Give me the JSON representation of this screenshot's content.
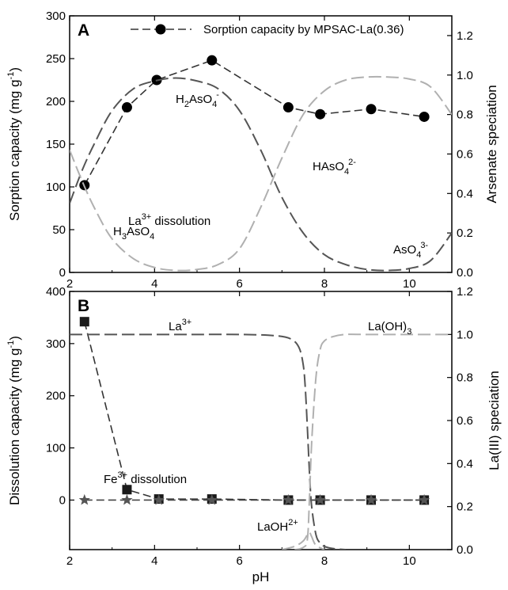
{
  "chart_data": [
    {
      "panel": "A",
      "type": "line",
      "xlabel": "",
      "xlim": [
        2,
        11
      ],
      "x_ticks": [
        2,
        4,
        6,
        8,
        10
      ],
      "ylabel": "Sorption capacity (mg g-1)",
      "ylabel_parts": [
        "Sorption capacity (mg g",
        "-1",
        ")"
      ],
      "ylim": [
        0,
        300
      ],
      "y_ticks": [
        0,
        50,
        100,
        150,
        200,
        250,
        300
      ],
      "y2label": "Arsenate speciation",
      "y2lim": [
        0,
        1.3
      ],
      "y2_ticks": [
        "0.0",
        "0.2",
        "0.4",
        "0.6",
        "0.8",
        "1.0",
        "1.2"
      ],
      "legend": {
        "label": "Sorption capacity by MPSAC-La(0.36)",
        "position": "top"
      },
      "series": [
        {
          "name": "Sorption capacity by MPSAC-La(0.36)",
          "axis": "left",
          "marker": "circle",
          "x": [
            2.35,
            3.35,
            4.05,
            5.35,
            7.15,
            7.9,
            9.1,
            10.35
          ],
          "y": [
            102,
            193,
            225,
            248,
            193,
            185,
            191,
            182
          ]
        },
        {
          "axis": "right",
          "color": "#555555",
          "x": [
            2.0,
            2.3,
            2.6,
            3.0,
            3.5,
            4.0,
            4.5,
            5.0,
            5.5,
            6.0,
            6.5,
            7.0,
            7.5,
            8.0,
            8.5,
            9.0,
            9.5,
            10.0,
            10.5,
            11.0
          ],
          "y": [
            0.35,
            0.52,
            0.66,
            0.82,
            0.93,
            0.97,
            0.985,
            0.97,
            0.93,
            0.82,
            0.62,
            0.38,
            0.2,
            0.09,
            0.04,
            0.015,
            0.01,
            0.02,
            0.06,
            0.2
          ]
        },
        {
          "axis": "right",
          "color": "#b0b0b0",
          "x": [
            2.0,
            2.3,
            2.6,
            3.0,
            3.5,
            4.0,
            4.5,
            5.0,
            5.5,
            6.0,
            6.5,
            7.0,
            7.5,
            8.0,
            8.5,
            9.0,
            9.5,
            10.0,
            10.5,
            11.0
          ],
          "y": [
            0.62,
            0.46,
            0.32,
            0.17,
            0.07,
            0.025,
            0.01,
            0.015,
            0.04,
            0.12,
            0.33,
            0.58,
            0.8,
            0.92,
            0.975,
            0.99,
            0.99,
            0.98,
            0.94,
            0.8
          ]
        }
      ],
      "annotations": [
        {
          "parts": [
            "H",
            "3",
            "AsO",
            "4",
            ""
          ]
        },
        {
          "parts": [
            "H",
            "2",
            "AsO",
            "4",
            "-"
          ]
        },
        {
          "parts": [
            "",
            "",
            "HAsO",
            "4",
            "2-"
          ]
        },
        {
          "parts": [
            "",
            "",
            "AsO",
            "4",
            "3-"
          ]
        }
      ]
    },
    {
      "panel": "B",
      "type": "line",
      "xlabel": "pH",
      "xlim": [
        2,
        11
      ],
      "x_ticks": [
        2,
        4,
        6,
        8,
        10
      ],
      "ylabel": "Dissolution capacity (mg g-1)",
      "ylabel_parts": [
        "Dissolution capacity (mg g",
        "-1",
        ")"
      ],
      "ylim": [
        -95,
        400
      ],
      "y_ticks": [
        0,
        100,
        200,
        300,
        400
      ],
      "y2label": "La(III) speciation",
      "y2_title_parts": [
        "La(III) speciation"
      ],
      "y2lim": [
        0,
        1.2
      ],
      "y2_ticks": [
        "0.0",
        "0.2",
        "0.4",
        "0.6",
        "0.8",
        "1.0",
        "1.2"
      ],
      "series": [
        {
          "name": "La3+ dissolution",
          "axis": "left",
          "marker": "square",
          "x": [
            2.35,
            3.35,
            4.1,
            5.35,
            7.15,
            7.9,
            9.1,
            10.35
          ],
          "y": [
            342,
            20,
            2,
            2,
            0,
            0,
            0,
            0
          ]
        },
        {
          "name": "Fe3+ dissolution",
          "axis": "left",
          "marker": "star",
          "x": [
            2.35,
            3.35,
            4.1,
            5.35,
            7.15,
            7.9,
            9.1,
            10.35
          ],
          "y": [
            0,
            0,
            0,
            0,
            0,
            0,
            0,
            0
          ]
        },
        {
          "axis": "right",
          "color": "#555555",
          "x": [
            2.0,
            3.0,
            4.0,
            5.0,
            6.0,
            6.8,
            7.2,
            7.4,
            7.5,
            7.55,
            7.6,
            7.65,
            7.7,
            7.8,
            7.9,
            8.0,
            8.2,
            8.5
          ],
          "y": [
            1.0,
            1.0,
            1.0,
            1.0,
            1.0,
            0.995,
            0.98,
            0.94,
            0.86,
            0.75,
            0.56,
            0.35,
            0.2,
            0.07,
            0.03,
            0.015,
            0.005,
            0.0
          ]
        },
        {
          "axis": "right",
          "color": "#b0b0b0",
          "x": [
            7.3,
            7.5,
            7.6,
            7.65,
            7.7,
            7.8,
            7.9,
            8.0,
            8.2,
            8.5,
            9.0,
            10.0,
            11.0
          ],
          "y": [
            0.0,
            0.01,
            0.05,
            0.25,
            0.5,
            0.8,
            0.93,
            0.97,
            0.99,
            1.0,
            1.0,
            1.0,
            1.0
          ]
        },
        {
          "axis": "right",
          "color": "#b0b0b0",
          "x": [
            7.0,
            7.3,
            7.5,
            7.6,
            7.65,
            7.7,
            7.8,
            8.0
          ],
          "y": [
            0.0,
            0.015,
            0.04,
            0.07,
            0.08,
            0.06,
            0.02,
            0.0
          ]
        }
      ],
      "annotations": [
        {
          "parts": [
            "La",
            "",
            "",
            "3+"
          ]
        },
        {
          "parts": [
            "La(OH)",
            "3",
            "",
            ""
          ]
        },
        {
          "parts": [
            "La",
            "",
            " dissolution",
            "3+"
          ]
        },
        {
          "parts": [
            "Fe",
            "",
            " dissolution",
            "3+"
          ]
        },
        {
          "parts": [
            "LaOH",
            "",
            "",
            "2+"
          ]
        }
      ]
    }
  ],
  "panel_letters": [
    "A",
    "B"
  ]
}
